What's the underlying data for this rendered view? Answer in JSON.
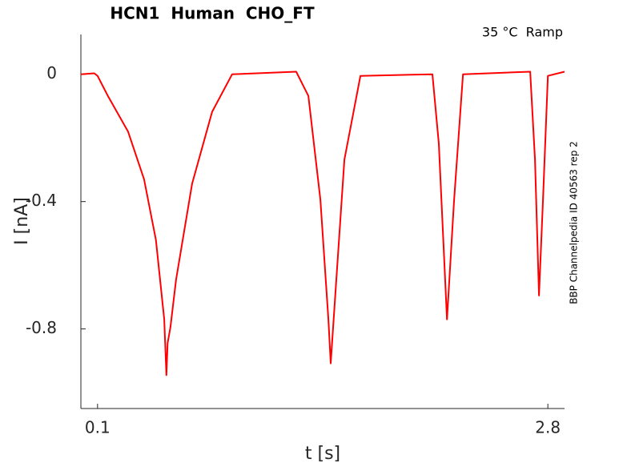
{
  "chart_data": {
    "type": "line",
    "title": "HCN1  Human  CHO_FT",
    "subtitle": "35 °C  Ramp",
    "annotation": "BBP Channelpedia ID 40563 rep 2",
    "x_label": "t [s]",
    "y_label": "I [nA]",
    "xlim": [
      0,
      2.9
    ],
    "ylim": [
      -1.05,
      0.125
    ],
    "xticks": [
      0.1,
      2.8
    ],
    "yticks": [
      0,
      -0.4,
      -0.8
    ],
    "grid": false,
    "series": [
      {
        "name": "trace",
        "color": "#ff0000",
        "x": [
          0,
          0.08,
          0.1,
          0.162,
          0.283,
          0.379,
          0.45,
          0.5,
          0.513,
          0.52,
          0.537,
          0.571,
          0.667,
          0.787,
          0.907,
          1.291,
          1.364,
          1.436,
          1.484,
          1.498,
          1.522,
          1.58,
          1.676,
          2.108,
          2.146,
          2.195,
          2.238,
          2.291,
          2.694,
          2.723,
          2.747,
          2.771,
          2.8,
          2.9
        ],
        "values": [
          0,
          0.003,
          -0.005,
          -0.068,
          -0.18,
          -0.33,
          -0.52,
          -0.77,
          -0.945,
          -0.845,
          -0.795,
          -0.645,
          -0.344,
          -0.118,
          0,
          0.008,
          -0.068,
          -0.394,
          -0.77,
          -0.908,
          -0.72,
          -0.268,
          -0.005,
          0,
          -0.218,
          -0.77,
          -0.394,
          0,
          0.008,
          -0.268,
          -0.695,
          -0.394,
          -0.005,
          0.008
        ]
      }
    ]
  }
}
